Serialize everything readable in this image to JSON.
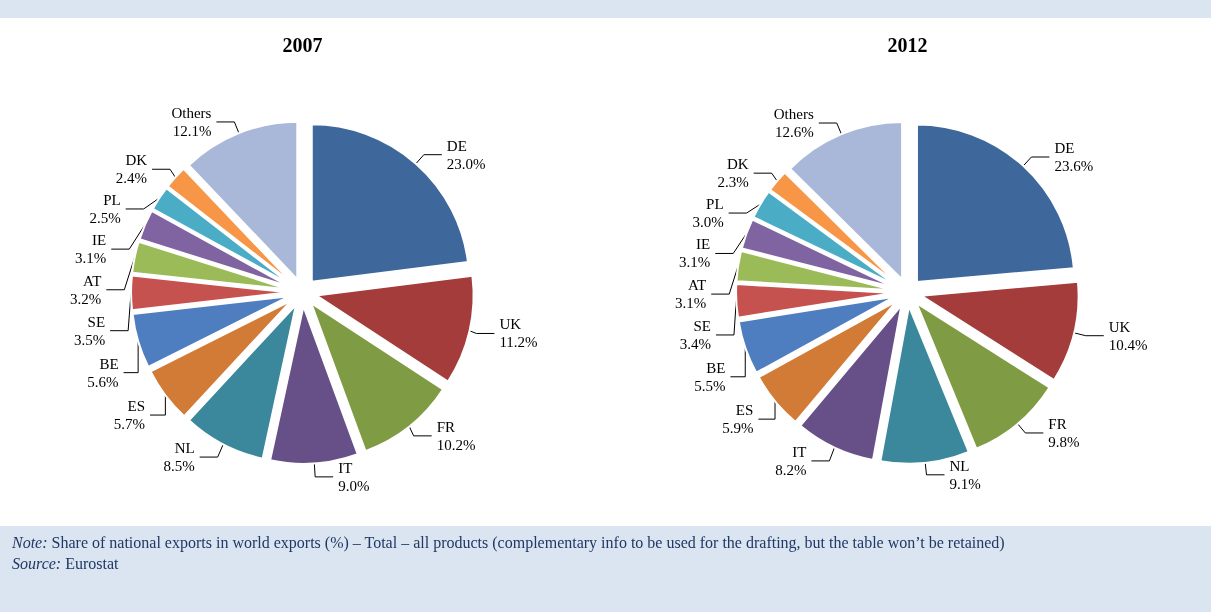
{
  "chart_data": [
    {
      "type": "pie",
      "title": "2007",
      "legend": false,
      "categories": [
        "DE",
        "UK",
        "FR",
        "IT",
        "NL",
        "ES",
        "BE",
        "SE",
        "AT",
        "IE",
        "PL",
        "DK",
        "Others"
      ],
      "values": [
        23.0,
        11.2,
        10.2,
        9.0,
        8.5,
        5.7,
        5.6,
        3.5,
        3.2,
        3.1,
        2.5,
        2.4,
        12.1
      ],
      "value_labels": [
        "23.0%",
        "11.2%",
        "10.2%",
        "9.0%",
        "8.5%",
        "5.7%",
        "5.6%",
        "3.5%",
        "3.2%",
        "3.1%",
        "2.5%",
        "2.4%",
        "12.1%"
      ],
      "colors": [
        "#3e689c",
        "#a33c3a",
        "#7f9c45",
        "#674f88",
        "#3b879c",
        "#d17b36",
        "#4f7ec0",
        "#c65250",
        "#9bbb59",
        "#8064a2",
        "#4bacc6",
        "#f79646",
        "#a9b8d9"
      ],
      "annotations": [
        "Note: Share of national exports in world exports (%) – Total – all products (complementary info to be used for the drafting, but the table won’t be retained)",
        "Source: Eurostat"
      ]
    },
    {
      "type": "pie",
      "title": "2012",
      "legend": false,
      "categories": [
        "DE",
        "UK",
        "FR",
        "NL",
        "IT",
        "ES",
        "BE",
        "SE",
        "AT",
        "IE",
        "PL",
        "DK",
        "Others"
      ],
      "values": [
        23.6,
        10.4,
        9.8,
        9.1,
        8.2,
        5.9,
        5.5,
        3.4,
        3.1,
        3.1,
        3.0,
        2.3,
        12.6
      ],
      "value_labels": [
        "23.6%",
        "10.4%",
        "9.8%",
        "9.1%",
        "8.2%",
        "5.9%",
        "5.5%",
        "3.4%",
        "3.1%",
        "3.1%",
        "3.0%",
        "2.3%",
        "12.6%"
      ],
      "colors": [
        "#3e689c",
        "#a33c3a",
        "#7f9c45",
        "#3b879c",
        "#674f88",
        "#d17b36",
        "#4f7ec0",
        "#c65250",
        "#9bbb59",
        "#8064a2",
        "#4bacc6",
        "#f79646",
        "#a9b8d9"
      ]
    }
  ]
}
